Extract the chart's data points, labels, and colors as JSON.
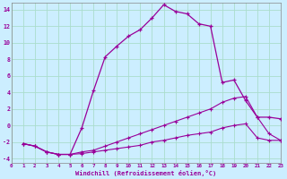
{
  "xlabel": "Windchill (Refroidissement éolien,°C)",
  "bg_color": "#cceeff",
  "line_color": "#990099",
  "grid_color": "#aaddcc",
  "xlim": [
    0,
    23
  ],
  "ylim": [
    -4.5,
    14.8
  ],
  "yticks": [
    -4,
    -2,
    0,
    2,
    4,
    6,
    8,
    10,
    12,
    14
  ],
  "xticks": [
    0,
    1,
    2,
    3,
    4,
    5,
    6,
    7,
    8,
    9,
    10,
    11,
    12,
    13,
    14,
    15,
    16,
    17,
    18,
    19,
    20,
    21,
    22,
    23
  ],
  "line1_x": [
    1,
    2,
    3,
    4,
    5,
    6,
    7,
    8,
    9,
    10,
    11,
    12,
    13,
    14,
    15,
    16,
    17,
    18,
    19,
    20,
    21,
    22,
    23
  ],
  "line1_y": [
    -2.2,
    -2.5,
    -3.2,
    -3.5,
    -3.5,
    -0.3,
    4.2,
    8.3,
    9.6,
    10.8,
    11.6,
    13.0,
    14.6,
    13.8,
    13.5,
    12.3,
    12.0,
    5.2,
    5.5,
    3.0,
    1.0,
    1.0,
    0.8
  ],
  "line2_x": [
    1,
    2,
    3,
    4,
    5,
    6,
    7,
    8,
    9,
    10,
    11,
    12,
    13,
    14,
    15,
    16,
    17,
    18,
    19,
    20,
    21,
    22,
    23
  ],
  "line2_y": [
    -2.2,
    -2.5,
    -3.2,
    -3.5,
    -3.5,
    -3.2,
    -3.0,
    -2.5,
    -2.0,
    -1.5,
    -1.0,
    -0.5,
    0.0,
    0.5,
    1.0,
    1.5,
    2.0,
    2.8,
    3.3,
    3.5,
    1.0,
    -1.0,
    -1.8
  ],
  "line3_x": [
    1,
    2,
    3,
    4,
    5,
    6,
    7,
    8,
    9,
    10,
    11,
    12,
    13,
    14,
    15,
    16,
    17,
    18,
    19,
    20,
    21,
    22,
    23
  ],
  "line3_y": [
    -2.2,
    -2.5,
    -3.2,
    -3.5,
    -3.5,
    -3.4,
    -3.2,
    -3.0,
    -2.8,
    -2.6,
    -2.4,
    -2.0,
    -1.8,
    -1.5,
    -1.2,
    -1.0,
    -0.8,
    -0.3,
    0.0,
    0.2,
    -1.5,
    -1.8,
    -1.8
  ]
}
